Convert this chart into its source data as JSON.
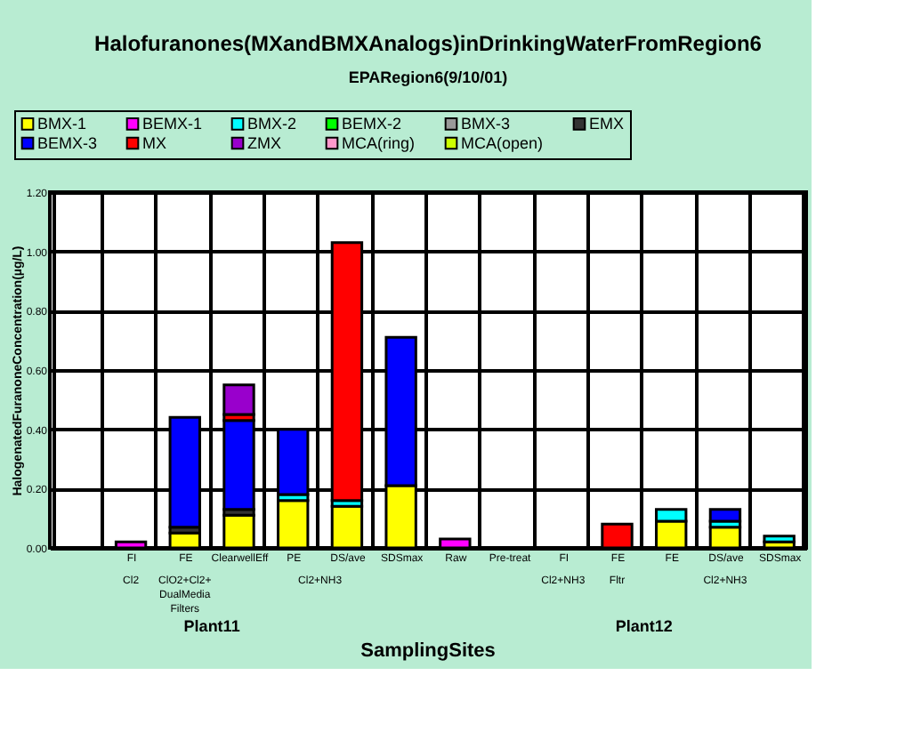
{
  "chart_data": {
    "type": "bar",
    "stacked": true,
    "title": "Halofuranones(MXandBMXAnalogs)inDrinkingWaterFromRegion6",
    "subtitle": "EPARegion6(9/10/01)",
    "xlabel": "SamplingSites",
    "ylabel": "HalogenatedFuranoneConcentration(µg/L)",
    "categories": [
      null,
      "FI",
      "FE",
      "ClearwellEff",
      "PE",
      "DS/ave",
      "SDSmax",
      "Raw",
      "Pre-treat",
      "FI",
      "FE",
      "FE",
      "DS/ave",
      "SDSmax"
    ],
    "series": [
      {
        "name": "BMX-1",
        "color": "#ffff00",
        "values": [
          null,
          null,
          0.05,
          0.11,
          0.16,
          0.14,
          0.21,
          null,
          null,
          null,
          null,
          0.09,
          0.07,
          0.02
        ]
      },
      {
        "name": "BEMX-1",
        "color": "#ff00ff",
        "values": [
          null,
          0.02,
          null,
          null,
          null,
          null,
          null,
          0.03,
          null,
          null,
          null,
          null,
          null,
          null
        ]
      },
      {
        "name": "BMX-2",
        "color": "#00ffff",
        "values": [
          null,
          null,
          null,
          null,
          0.02,
          0.02,
          null,
          null,
          null,
          null,
          null,
          0.04,
          0.02,
          0.02
        ]
      },
      {
        "name": "BEMX-2",
        "color": "#00ff00",
        "values": [
          null,
          null,
          null,
          null,
          null,
          null,
          null,
          null,
          null,
          null,
          null,
          null,
          null,
          null
        ]
      },
      {
        "name": "BMX-3",
        "color": "#999999",
        "values": [
          null,
          null,
          null,
          null,
          null,
          null,
          null,
          null,
          null,
          null,
          null,
          null,
          null,
          null
        ]
      },
      {
        "name": "EMX",
        "color": "#333333",
        "values": [
          null,
          null,
          0.02,
          0.02,
          null,
          null,
          null,
          null,
          null,
          null,
          null,
          null,
          null,
          null
        ]
      },
      {
        "name": "BEMX-3",
        "color": "#0000ff",
        "values": [
          null,
          null,
          0.37,
          0.3,
          0.22,
          null,
          0.5,
          null,
          null,
          null,
          null,
          null,
          0.04,
          null
        ]
      },
      {
        "name": "MX",
        "color": "#ff0000",
        "values": [
          null,
          null,
          null,
          0.02,
          null,
          0.87,
          null,
          null,
          null,
          null,
          0.08,
          null,
          null,
          null
        ]
      },
      {
        "name": "ZMX",
        "color": "#9900cc",
        "values": [
          null,
          null,
          null,
          0.1,
          null,
          null,
          null,
          null,
          null,
          null,
          null,
          null,
          null,
          null
        ]
      },
      {
        "name": "MCA(ring)",
        "color": "#ff99cc",
        "values": [
          null,
          null,
          null,
          null,
          null,
          null,
          null,
          null,
          null,
          null,
          null,
          null,
          null,
          null
        ]
      },
      {
        "name": "MCA(open)",
        "color": "#ccff00",
        "values": [
          null,
          null,
          null,
          null,
          null,
          null,
          null,
          null,
          null,
          null,
          null,
          null,
          null,
          null
        ]
      }
    ],
    "ylim": [
      0,
      1.2
    ],
    "yticks": [
      {
        "value": 0,
        "label": "0.00"
      },
      {
        "value": 0.2,
        "label": "0.20"
      },
      {
        "value": 0.4,
        "label": "0.40"
      },
      {
        "value": 0.6,
        "label": "0.60"
      },
      {
        "value": 0.8,
        "label": "0.80"
      },
      {
        "value": 1.0,
        "label": "1.00"
      },
      {
        "value": 1.2,
        "label": "1.20"
      }
    ],
    "grid": true,
    "legend": "top",
    "annotations": [
      "Cl2",
      "ClO2+Cl2+ DualMedia Filters",
      "Cl2+NH3",
      "Plant11",
      "Cl2+NH3",
      "Fltr",
      "Cl2+NH3",
      "Plant12"
    ]
  }
}
